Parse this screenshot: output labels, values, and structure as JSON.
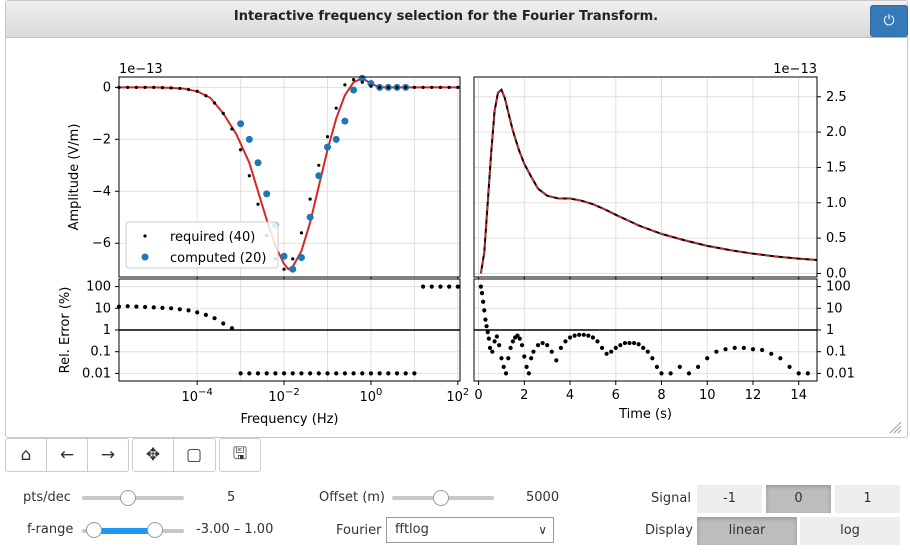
{
  "window": {
    "title": "Interactive frequency selection for the Fourier Transform."
  },
  "toolbar": {
    "icons": [
      "home-icon",
      "back-icon",
      "forward-icon",
      "pan-icon",
      "zoom-rect-icon",
      "save-icon"
    ]
  },
  "controls": {
    "pts_label": "pts/dec",
    "pts_value": "5",
    "pts_fraction": 0.45,
    "frange_label": "f-range",
    "frange_value": "-3.00 – 1.00",
    "frange_low_fraction": 0.12,
    "frange_high_fraction": 0.72,
    "offset_label": "Offset (m)",
    "offset_value": "5000",
    "offset_fraction": 0.48,
    "fourier_label": "Fourier",
    "fourier_value": "fftlog",
    "signal_label": "Signal",
    "signal_options": [
      "-1",
      "0",
      "1"
    ],
    "signal_selected": "0",
    "display_label": "Display",
    "display_options": [
      "linear",
      "log"
    ],
    "display_selected": "linear"
  },
  "colors": {
    "accent": "#2196f3",
    "required": "#000000",
    "computed": "#1f77b4",
    "fit": "#d62728",
    "power": "#337ab7"
  },
  "chart_data": [
    {
      "type": "line",
      "panel": "frequency-amplitude",
      "ylabel": "Amplitude (V/m)",
      "offset_text": "1e−13",
      "xscale": "log",
      "xlim_log10": [
        -5.8,
        2.05
      ],
      "ylim": [
        -7.3,
        0.4
      ],
      "yticks": [
        0,
        -2,
        -4,
        -6
      ],
      "ytick_labels": [
        "0",
        "−2",
        "−4",
        "−6"
      ],
      "legend": {
        "loc": "lower-left",
        "entries": [
          "required (40)",
          "computed (20)"
        ]
      },
      "series": [
        {
          "name": "required (40)",
          "style": "black-dots",
          "log10_f": [
            -5.8,
            -5.6,
            -5.4,
            -5.2,
            -5.0,
            -4.8,
            -4.6,
            -4.4,
            -4.2,
            -4.0,
            -3.8,
            -3.6,
            -3.4,
            -3.2,
            -3.0,
            -2.8,
            -2.6,
            -2.4,
            -2.2,
            -2.0,
            -1.8,
            -1.6,
            -1.4,
            -1.2,
            -1.0,
            -0.8,
            -0.6,
            -0.4,
            -0.2,
            0.0,
            0.2,
            0.4,
            0.6,
            0.8,
            1.0,
            1.2,
            1.4,
            1.6,
            1.8,
            2.0
          ],
          "values": [
            0,
            0,
            0,
            0,
            0,
            -0.01,
            -0.02,
            -0.04,
            -0.08,
            -0.15,
            -0.32,
            -0.6,
            -1.0,
            -1.6,
            -2.4,
            -3.4,
            -4.5,
            -5.7,
            -6.6,
            -7.0,
            -6.6,
            -5.6,
            -4.3,
            -3.0,
            -1.9,
            -0.8,
            0.1,
            0.3,
            0.2,
            0.05,
            0.0,
            0.0,
            0.0,
            0.0,
            0.0,
            0.0,
            0.0,
            0.0,
            0.0,
            0.0
          ]
        },
        {
          "name": "computed (20)",
          "style": "blue-dots",
          "log10_f": [
            -3.0,
            -2.8,
            -2.6,
            -2.4,
            -2.2,
            -2.0,
            -1.8,
            -1.6,
            -1.4,
            -1.2,
            -1.0,
            -0.8,
            -0.6,
            -0.4,
            -0.2,
            0.0,
            0.2,
            0.4,
            0.6,
            0.8
          ],
          "values": [
            -1.4,
            -2.0,
            -2.9,
            -4.1,
            -5.3,
            -6.5,
            -7.0,
            -6.55,
            -5.0,
            -3.4,
            -2.3,
            -2.0,
            -1.3,
            -0.1,
            0.35,
            0.15,
            0.0,
            0.0,
            0.0,
            0.0
          ]
        },
        {
          "name": "fit",
          "style": "red-line",
          "log10_f": [
            -5.8,
            -5.0,
            -4.6,
            -4.3,
            -4.0,
            -3.7,
            -3.4,
            -3.1,
            -2.8,
            -2.6,
            -2.4,
            -2.2,
            -2.0,
            -1.9,
            -1.8,
            -1.6,
            -1.4,
            -1.2,
            -1.0,
            -0.8,
            -0.6,
            -0.4,
            -0.2,
            0.0,
            0.2,
            0.4,
            0.6,
            1.0,
            1.6,
            2.05
          ],
          "values": [
            0,
            0,
            -0.02,
            -0.05,
            -0.15,
            -0.4,
            -1.0,
            -1.8,
            -2.9,
            -4.0,
            -5.1,
            -6.1,
            -6.8,
            -7.0,
            -6.9,
            -6.3,
            -5.2,
            -3.8,
            -2.4,
            -1.2,
            -0.3,
            0.2,
            0.35,
            0.15,
            0.0,
            0.0,
            0.0,
            0.0,
            0.0,
            0.0
          ]
        }
      ]
    },
    {
      "type": "line",
      "panel": "time-domain",
      "offset_text": "1e−13",
      "xlim": [
        -0.2,
        14.8
      ],
      "ylim": [
        -0.05,
        2.78
      ],
      "yticks": [
        0.0,
        0.5,
        1.0,
        1.5,
        2.0,
        2.5
      ],
      "ytick_labels": [
        "0.0",
        "0.5",
        "1.0",
        "1.5",
        "2.0",
        "2.5"
      ],
      "series": [
        {
          "name": "reference",
          "style": "black-line",
          "x": [
            0.1,
            0.25,
            0.4,
            0.55,
            0.7,
            0.85,
            1.0,
            1.15,
            1.3,
            1.5,
            1.75,
            2.0,
            2.3,
            2.6,
            3.0,
            3.5,
            4.0,
            4.5,
            5.0,
            5.5,
            6.0,
            7.0,
            8.0,
            9.0,
            10.0,
            11.0,
            12.0,
            13.0,
            14.0,
            14.8
          ],
          "values": [
            0.0,
            0.3,
            1.0,
            1.7,
            2.3,
            2.56,
            2.6,
            2.48,
            2.28,
            2.02,
            1.76,
            1.55,
            1.37,
            1.2,
            1.1,
            1.06,
            1.06,
            1.03,
            0.98,
            0.91,
            0.83,
            0.68,
            0.56,
            0.47,
            0.39,
            0.33,
            0.28,
            0.24,
            0.21,
            0.19
          ]
        },
        {
          "name": "computed",
          "style": "red-dashed",
          "same_as": "reference"
        }
      ]
    },
    {
      "type": "scatter",
      "panel": "frequency-error",
      "ylabel": "Rel. Error (%)",
      "xlabel": "Frequency (Hz)",
      "xscale": "log",
      "yscale": "log",
      "xticks_log10": [
        -4,
        -2,
        0,
        2
      ],
      "xtick_labels": [
        "10−4",
        "10−2",
        "100",
        "102"
      ],
      "yticks": [
        100,
        10,
        1,
        0.1,
        0.01
      ],
      "ytick_labels": [
        "100",
        "10",
        "1",
        "0.1",
        "0.01"
      ],
      "hline": 1,
      "log10_f": [
        -5.8,
        -5.6,
        -5.4,
        -5.2,
        -5.0,
        -4.8,
        -4.6,
        -4.4,
        -4.2,
        -4.0,
        -3.8,
        -3.6,
        -3.4,
        -3.2,
        -3.0,
        -2.8,
        -2.6,
        -2.4,
        -2.2,
        -2.0,
        -1.8,
        -1.6,
        -1.4,
        -1.2,
        -1.0,
        -0.8,
        -0.6,
        -0.4,
        -0.2,
        0.0,
        0.2,
        0.4,
        0.6,
        0.8,
        1.0,
        1.2,
        1.4,
        1.6,
        1.8,
        2.0
      ],
      "values": [
        12,
        12.5,
        12,
        11.5,
        11,
        10.5,
        10,
        9,
        8,
        6.5,
        5,
        3.5,
        2,
        1.2,
        0.01,
        0.01,
        0.01,
        0.01,
        0.01,
        0.01,
        0.01,
        0.01,
        0.01,
        0.01,
        0.01,
        0.01,
        0.01,
        0.01,
        0.01,
        0.01,
        0.01,
        0.01,
        0.01,
        0.01,
        0.01,
        100,
        100,
        100,
        100,
        100
      ]
    },
    {
      "type": "scatter",
      "panel": "time-error",
      "xlabel": "Time (s)",
      "xticks": [
        0,
        2,
        4,
        6,
        8,
        10,
        12,
        14
      ],
      "xtick_labels": [
        "0",
        "2",
        "4",
        "6",
        "8",
        "10",
        "12",
        "14"
      ],
      "yscale": "log",
      "yticks": [
        100,
        10,
        1,
        0.1,
        0.01
      ],
      "ytick_labels": [
        "100",
        "10",
        "1",
        "0.1",
        "0.01"
      ],
      "hline": 1,
      "x": [
        0.1,
        0.15,
        0.2,
        0.25,
        0.3,
        0.35,
        0.4,
        0.45,
        0.5,
        0.6,
        0.7,
        0.8,
        0.9,
        1.0,
        1.1,
        1.2,
        1.3,
        1.4,
        1.5,
        1.6,
        1.7,
        1.8,
        1.9,
        2.0,
        2.1,
        2.2,
        2.3,
        2.4,
        2.6,
        2.8,
        3.0,
        3.2,
        3.4,
        3.6,
        3.8,
        4.0,
        4.2,
        4.4,
        4.6,
        4.8,
        5.0,
        5.2,
        5.4,
        5.6,
        5.8,
        6.0,
        6.2,
        6.4,
        6.6,
        6.8,
        7.0,
        7.2,
        7.4,
        7.6,
        7.8,
        8.0,
        8.4,
        8.8,
        9.2,
        9.6,
        10.0,
        10.4,
        10.8,
        11.2,
        11.6,
        12.0,
        12.4,
        12.8,
        13.2,
        13.6,
        14.0,
        14.4
      ],
      "values": [
        100,
        50,
        20,
        8,
        3,
        1.5,
        0.8,
        0.4,
        0.15,
        0.1,
        0.3,
        0.5,
        0.2,
        0.05,
        0.02,
        0.01,
        0.05,
        0.15,
        0.3,
        0.45,
        0.55,
        0.4,
        0.2,
        0.06,
        0.02,
        0.01,
        0.05,
        0.1,
        0.2,
        0.25,
        0.2,
        0.1,
        0.04,
        0.15,
        0.3,
        0.45,
        0.55,
        0.6,
        0.6,
        0.55,
        0.45,
        0.3,
        0.15,
        0.08,
        0.1,
        0.15,
        0.2,
        0.25,
        0.25,
        0.25,
        0.22,
        0.15,
        0.1,
        0.05,
        0.02,
        0.01,
        0.01,
        0.02,
        0.01,
        0.02,
        0.05,
        0.1,
        0.13,
        0.15,
        0.15,
        0.13,
        0.12,
        0.08,
        0.05,
        0.02,
        0.01,
        0.01
      ]
    }
  ]
}
